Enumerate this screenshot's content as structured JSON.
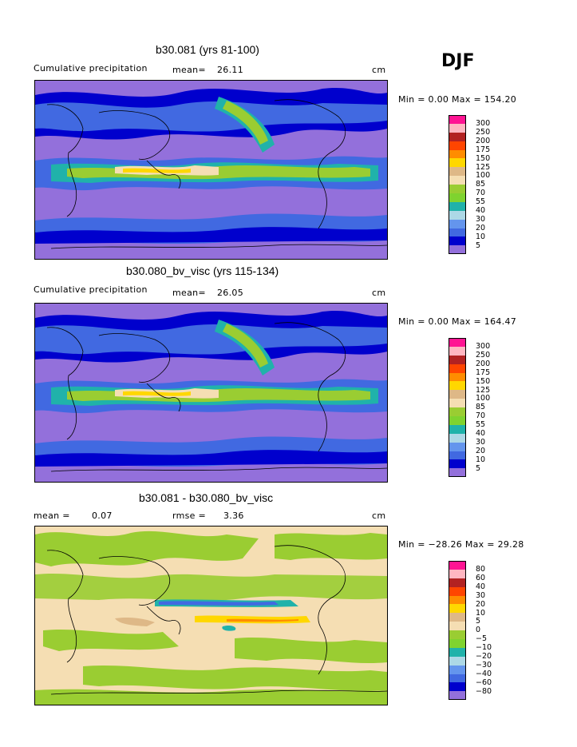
{
  "season": "DJF",
  "panels": [
    {
      "title": "b30.081 (yrs 81-100)",
      "left_label": "Cumulative precipitation",
      "mean_label": "mean=",
      "mean_value": "26.11",
      "unit": "cm",
      "minmax": "Min =    0.00 Max = 154.20",
      "levels": [
        "300",
        "250",
        "200",
        "175",
        "150",
        "125",
        "100",
        "85",
        "70",
        "55",
        "40",
        "30",
        "20",
        "10",
        "5"
      ]
    },
    {
      "title": "b30.080_bv_visc (yrs 115-134)",
      "left_label": "Cumulative precipitation",
      "mean_label": "mean=",
      "mean_value": "26.05",
      "unit": "cm",
      "minmax": "Min =    0.00 Max = 164.47",
      "levels": [
        "300",
        "250",
        "200",
        "175",
        "150",
        "125",
        "100",
        "85",
        "70",
        "55",
        "40",
        "30",
        "20",
        "10",
        "5"
      ]
    },
    {
      "title": "b30.081 - b30.080_bv_visc",
      "left_label": "mean =",
      "left_value": "0.07",
      "rmse_label": "rmse =",
      "rmse_value": "3.36",
      "unit": "cm",
      "minmax": "Min = −28.26 Max =   29.28",
      "levels": [
        "80",
        "60",
        "40",
        "30",
        "20",
        "10",
        "5",
        "0",
        "−5",
        "−10",
        "−20",
        "−30",
        "−40",
        "−60",
        "−80"
      ]
    }
  ],
  "colors": {
    "abs_scale": [
      "#ff1493",
      "#ffb6c1",
      "#b22222",
      "#ff4500",
      "#ff8c00",
      "#ffd700",
      "#deb887",
      "#f5deb3",
      "#9acd32",
      "#7fd32f",
      "#20b2aa",
      "#add8e6",
      "#6495ed",
      "#4169e1",
      "#0000cd",
      "#9370db"
    ],
    "diff_scale": [
      "#ff1493",
      "#ffb6c1",
      "#b22222",
      "#ff4500",
      "#ff8c00",
      "#ffd700",
      "#deb887",
      "#f5deb3",
      "#9acd32",
      "#7fd32f",
      "#20b2aa",
      "#add8e6",
      "#6495ed",
      "#4169e1",
      "#0000cd",
      "#9370db"
    ]
  }
}
